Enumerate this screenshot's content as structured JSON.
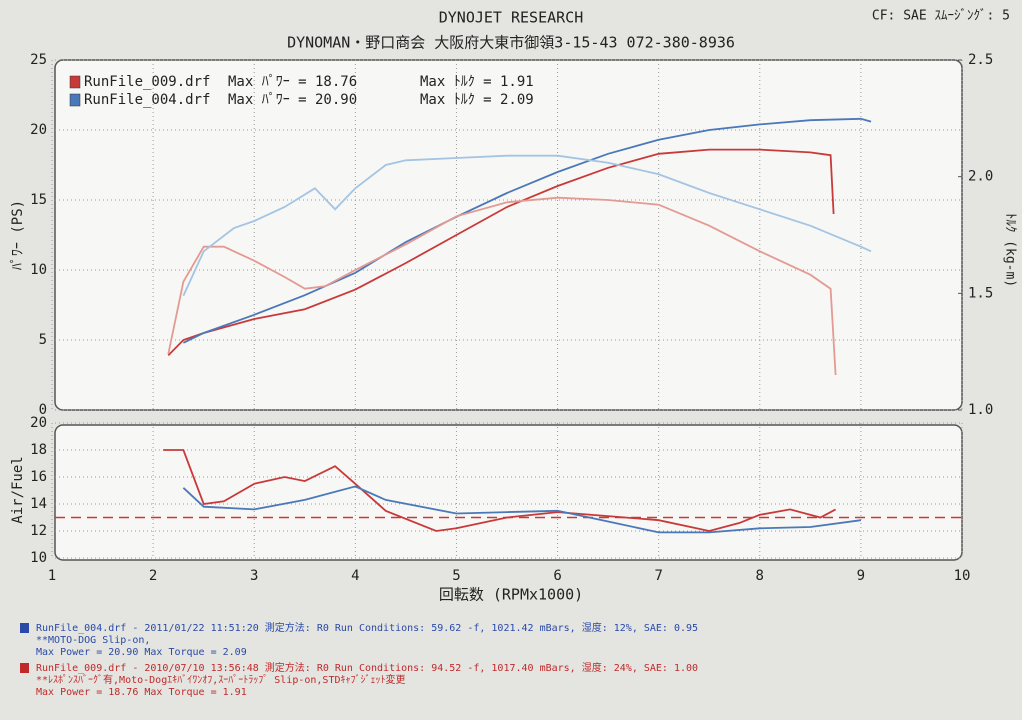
{
  "header": {
    "title": "DYNOJET  RESEARCH",
    "subtitle": "DYNOMAN・野口商会  大阪府大東市御領3-15-43  072-380-8936",
    "settings": "CF: SAE  ｽﾑｰｼﾞﾝｸﾞ: 5"
  },
  "chart_data": [
    {
      "type": "line",
      "ylabel": "ﾊﾟﾜｰ (PS)",
      "y2label": "ﾄﾙｸ (kg-m)",
      "ylim": [
        0,
        25
      ],
      "yticks": [
        0,
        5,
        10,
        15,
        20,
        25
      ],
      "y2lim": [
        1,
        2.5
      ],
      "y2ticks": [
        {
          "value": 1,
          "label": "1.0"
        },
        1.5,
        {
          "value": 2,
          "label": "2.0"
        },
        2.5
      ],
      "grid": true,
      "legend_notes": [
        [
          "Max ﾊﾟﾜｰ = 18.76",
          "Max ﾄﾙｸ = 1.91"
        ],
        [
          "Max ﾊﾟﾜｰ = 20.90",
          "Max ﾄﾙｸ = 2.09"
        ]
      ],
      "series": [
        {
          "name": "RunFile_009.drf",
          "color": "#c83a3a",
          "x": [
            2.15,
            2.3,
            2.5,
            3.0,
            3.5,
            4.0,
            4.5,
            5.0,
            5.5,
            6.0,
            6.5,
            7.0,
            7.5,
            8.0,
            8.5,
            8.7,
            8.73
          ],
          "values": [
            3.9,
            5.0,
            5.5,
            6.5,
            7.2,
            8.6,
            10.5,
            12.5,
            14.5,
            16.0,
            17.3,
            18.3,
            18.6,
            18.6,
            18.4,
            18.2,
            14.0
          ]
        },
        {
          "name": "RunFile_004.drf",
          "color": "#4a78b8",
          "x": [
            2.3,
            2.5,
            3.0,
            3.5,
            4.0,
            4.5,
            5.0,
            5.5,
            6.0,
            6.5,
            7.0,
            7.5,
            8.0,
            8.5,
            9.0,
            9.1
          ],
          "values": [
            4.8,
            5.5,
            6.8,
            8.2,
            9.8,
            12.0,
            13.8,
            15.5,
            17.0,
            18.3,
            19.3,
            20.0,
            20.4,
            20.7,
            20.8,
            20.6
          ]
        },
        {
          "axis": "y2",
          "color": "#e39a92",
          "x": [
            2.15,
            2.3,
            2.5,
            2.7,
            3.0,
            3.3,
            3.5,
            3.7,
            4.0,
            4.5,
            5.0,
            5.5,
            6.0,
            6.5,
            7.0,
            7.5,
            8.0,
            8.5,
            8.7,
            8.75
          ],
          "values": [
            1.24,
            1.55,
            1.7,
            1.7,
            1.64,
            1.57,
            1.52,
            1.53,
            1.6,
            1.71,
            1.83,
            1.89,
            1.91,
            1.9,
            1.88,
            1.79,
            1.68,
            1.58,
            1.52,
            1.15
          ]
        },
        {
          "axis": "y2",
          "color": "#a3c4e2",
          "x": [
            2.3,
            2.5,
            2.8,
            3.0,
            3.3,
            3.6,
            3.8,
            4.0,
            4.3,
            4.5,
            5.0,
            5.5,
            6.0,
            6.5,
            7.0,
            7.5,
            8.0,
            8.5,
            9.0,
            9.1
          ],
          "values": [
            1.49,
            1.68,
            1.78,
            1.81,
            1.87,
            1.95,
            1.86,
            1.95,
            2.05,
            2.07,
            2.08,
            2.09,
            2.09,
            2.06,
            2.01,
            1.93,
            1.86,
            1.79,
            1.7,
            1.68
          ]
        }
      ]
    },
    {
      "type": "line",
      "ylabel": "Air/Fuel",
      "xlabel": "回転数 (RPMx1000)",
      "xlim": [
        1,
        10
      ],
      "xticks": [
        1,
        2,
        3,
        4,
        5,
        6,
        7,
        8,
        9,
        10
      ],
      "ylim": [
        10,
        20
      ],
      "yticks": [
        10,
        12,
        14,
        16,
        18,
        20
      ],
      "grid": true,
      "reference_line": {
        "value": 13,
        "color": "#c83a3a"
      },
      "series": [
        {
          "color": "#c83a3a",
          "x": [
            2.1,
            2.3,
            2.5,
            2.7,
            3.0,
            3.3,
            3.5,
            3.8,
            4.0,
            4.3,
            4.8,
            5.0,
            5.5,
            6.0,
            6.5,
            7.0,
            7.5,
            7.8,
            8.0,
            8.3,
            8.6,
            8.75
          ],
          "values": [
            18,
            18,
            14,
            14.2,
            15.5,
            16,
            15.7,
            16.8,
            15.5,
            13.5,
            12,
            12.2,
            13,
            13.4,
            13.1,
            12.8,
            12,
            12.6,
            13.2,
            13.6,
            13.0,
            13.6
          ]
        },
        {
          "color": "#4a78b8",
          "x": [
            2.3,
            2.5,
            3.0,
            3.5,
            4.0,
            4.3,
            5.0,
            5.5,
            6.0,
            6.5,
            7.0,
            7.5,
            8.0,
            8.5,
            9.0
          ],
          "values": [
            15.2,
            13.8,
            13.6,
            14.3,
            15.3,
            14.3,
            13.3,
            13.4,
            13.5,
            12.7,
            11.9,
            11.9,
            12.2,
            12.3,
            12.8
          ]
        }
      ]
    }
  ],
  "footer": [
    {
      "color": "#2a4aa8",
      "lines": [
        "RunFile_004.drf - 2011/01/22 11:51:20  測定方法: R0  Run Conditions: 59.62 -f, 1021.42 mBars,  湿度: 12%, SAE: 0.95",
        "**MOTO-DOG Slip-on,",
        "Max Power = 20.90  Max Torque = 2.09"
      ]
    },
    {
      "color": "#c02a2a",
      "lines": [
        "RunFile_009.drf - 2010/07/10 13:56:48  測定方法: R0  Run Conditions: 94.52 -f, 1017.40 mBars,  湿度: 24%, SAE: 1.00",
        "**ﾚｽﾎﾟﾝｽﾊﾞｰｸﾞ有,Moto-Dogｴｷﾊﾞｲﾜﾝｵﾌ,ｽｰﾊﾟｰﾄﾗｯﾌﾟ Slip-on,STDｷｬﾌﾞｼﾞｪｯﾄ変更",
        "Max Power = 18.76  Max Torque = 1.91"
      ]
    }
  ]
}
